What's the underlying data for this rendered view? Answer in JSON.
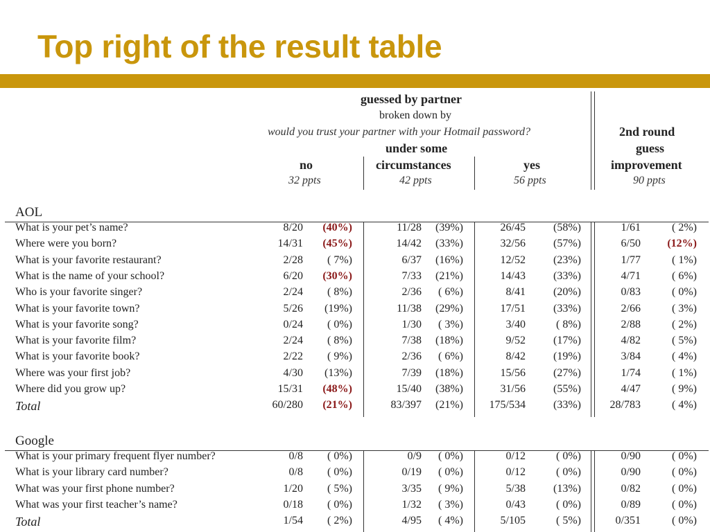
{
  "slide_title": "Top right of the result table",
  "header": {
    "guessed_by_partner": "guessed by partner",
    "broken_down_by": "broken down by",
    "question": "would you trust your partner with your Hotmail password?",
    "col_no": "no",
    "col_no_ppts": "32 ppts",
    "col_some_line1": "under some",
    "col_some_line2": "circumstances",
    "col_some_ppts": "42 ppts",
    "col_yes": "yes",
    "col_yes_ppts": "56 ppts",
    "round2_line1": "2nd round",
    "round2_line2": "guess",
    "round2_line3": "improvement",
    "round2_ppts": "90 ppts"
  },
  "aol": {
    "label": "AOL",
    "rows": [
      {
        "q": "What is your pet’s name?",
        "cells": [
          [
            "8/20",
            "(40%)",
            true
          ],
          [
            "11/28",
            "(39%)",
            false
          ],
          [
            "26/45",
            "(58%)",
            false
          ],
          [
            "1/61",
            "( 2%)",
            false
          ]
        ]
      },
      {
        "q": "Where were you born?",
        "cells": [
          [
            "14/31",
            "(45%)",
            true
          ],
          [
            "14/42",
            "(33%)",
            false
          ],
          [
            "32/56",
            "(57%)",
            false
          ],
          [
            "6/50",
            "(12%)",
            true
          ]
        ]
      },
      {
        "q": "What is your favorite restaurant?",
        "cells": [
          [
            "2/28",
            "( 7%)",
            false
          ],
          [
            "6/37",
            "(16%)",
            false
          ],
          [
            "12/52",
            "(23%)",
            false
          ],
          [
            "1/77",
            "( 1%)",
            false
          ]
        ]
      },
      {
        "q": "What is the name of your school?",
        "cells": [
          [
            "6/20",
            "(30%)",
            true
          ],
          [
            "7/33",
            "(21%)",
            false
          ],
          [
            "14/43",
            "(33%)",
            false
          ],
          [
            "4/71",
            "( 6%)",
            false
          ]
        ]
      },
      {
        "q": "Who is your favorite singer?",
        "cells": [
          [
            "2/24",
            "( 8%)",
            false
          ],
          [
            "2/36",
            "( 6%)",
            false
          ],
          [
            "8/41",
            "(20%)",
            false
          ],
          [
            "0/83",
            "( 0%)",
            false
          ]
        ]
      },
      {
        "q": "What is your favorite town?",
        "cells": [
          [
            "5/26",
            "(19%)",
            false
          ],
          [
            "11/38",
            "(29%)",
            false
          ],
          [
            "17/51",
            "(33%)",
            false
          ],
          [
            "2/66",
            "( 3%)",
            false
          ]
        ]
      },
      {
        "q": "What is your favorite song?",
        "cells": [
          [
            "0/24",
            "( 0%)",
            false
          ],
          [
            "1/30",
            "( 3%)",
            false
          ],
          [
            "3/40",
            "( 8%)",
            false
          ],
          [
            "2/88",
            "( 2%)",
            false
          ]
        ]
      },
      {
        "q": "What is your favorite film?",
        "cells": [
          [
            "2/24",
            "( 8%)",
            false
          ],
          [
            "7/38",
            "(18%)",
            false
          ],
          [
            "9/52",
            "(17%)",
            false
          ],
          [
            "4/82",
            "( 5%)",
            false
          ]
        ]
      },
      {
        "q": "What is your favorite book?",
        "cells": [
          [
            "2/22",
            "( 9%)",
            false
          ],
          [
            "2/36",
            "( 6%)",
            false
          ],
          [
            "8/42",
            "(19%)",
            false
          ],
          [
            "3/84",
            "( 4%)",
            false
          ]
        ]
      },
      {
        "q": "Where was your first job?",
        "cells": [
          [
            "4/30",
            "(13%)",
            false
          ],
          [
            "7/39",
            "(18%)",
            false
          ],
          [
            "15/56",
            "(27%)",
            false
          ],
          [
            "1/74",
            "( 1%)",
            false
          ]
        ]
      },
      {
        "q": "Where did you grow up?",
        "cells": [
          [
            "15/31",
            "(48%)",
            true
          ],
          [
            "15/40",
            "(38%)",
            false
          ],
          [
            "31/56",
            "(55%)",
            false
          ],
          [
            "4/47",
            "( 9%)",
            false
          ]
        ]
      }
    ],
    "total": {
      "q": "Total",
      "cells": [
        [
          "60/280",
          "(21%)",
          true
        ],
        [
          "83/397",
          "(21%)",
          false
        ],
        [
          "175/534",
          "(33%)",
          false
        ],
        [
          "28/783",
          "( 4%)",
          false
        ]
      ]
    }
  },
  "google": {
    "label": "Google",
    "rows": [
      {
        "q": "What is your primary frequent flyer number?",
        "cells": [
          [
            "0/8",
            "( 0%)",
            false
          ],
          [
            "0/9",
            "( 0%)",
            false
          ],
          [
            "0/12",
            "( 0%)",
            false
          ],
          [
            "0/90",
            "( 0%)",
            false
          ]
        ]
      },
      {
        "q": "What is your library card number?",
        "cells": [
          [
            "0/8",
            "( 0%)",
            false
          ],
          [
            "0/19",
            "( 0%)",
            false
          ],
          [
            "0/12",
            "( 0%)",
            false
          ],
          [
            "0/90",
            "( 0%)",
            false
          ]
        ]
      },
      {
        "q": "What was your first phone number?",
        "cells": [
          [
            "1/20",
            "( 5%)",
            false
          ],
          [
            "3/35",
            "( 9%)",
            false
          ],
          [
            "5/38",
            "(13%)",
            false
          ],
          [
            "0/82",
            "( 0%)",
            false
          ]
        ]
      },
      {
        "q": "What was your first teacher’s name?",
        "cells": [
          [
            "0/18",
            "( 0%)",
            false
          ],
          [
            "1/32",
            "( 3%)",
            false
          ],
          [
            "0/43",
            "( 0%)",
            false
          ],
          [
            "0/89",
            "( 0%)",
            false
          ]
        ]
      }
    ],
    "total": {
      "q": "Total",
      "cells": [
        [
          "1/54",
          "( 2%)",
          false
        ],
        [
          "4/95",
          "( 4%)",
          false
        ],
        [
          "5/105",
          "( 5%)",
          false
        ],
        [
          "0/351",
          "( 0%)",
          false
        ]
      ]
    }
  }
}
